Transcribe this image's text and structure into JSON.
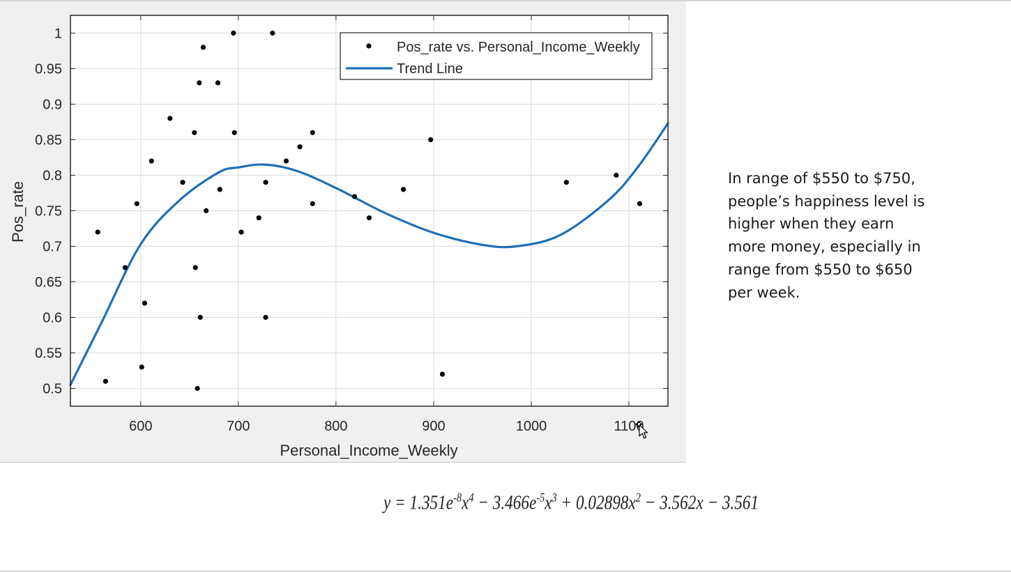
{
  "chart_data": {
    "type": "scatter",
    "xlabel": "Personal_Income_Weekly",
    "ylabel": "Pos_rate",
    "xlim": [
      528,
      1140
    ],
    "ylim": [
      0.475,
      1.025
    ],
    "x_ticks": [
      600,
      700,
      800,
      900,
      1000,
      1100
    ],
    "y_ticks": [
      0.5,
      0.55,
      0.6,
      0.65,
      0.7,
      0.75,
      0.8,
      0.85,
      0.9,
      0.95,
      1
    ],
    "grid": true,
    "legend_position": "top-right",
    "legend": [
      "Pos_rate vs. Personal_Income_Weekly",
      "Trend Line"
    ],
    "series": [
      {
        "name": "Pos_rate vs. Personal_Income_Weekly",
        "style": "markers",
        "color": "#000000",
        "points": [
          [
            556,
            0.72
          ],
          [
            564,
            0.51
          ],
          [
            584,
            0.67
          ],
          [
            596,
            0.76
          ],
          [
            601,
            0.53
          ],
          [
            604,
            0.62
          ],
          [
            611,
            0.82
          ],
          [
            630,
            0.88
          ],
          [
            643,
            0.79
          ],
          [
            655,
            0.86
          ],
          [
            656,
            0.67
          ],
          [
            658,
            0.5
          ],
          [
            660,
            0.93
          ],
          [
            661,
            0.6
          ],
          [
            664,
            0.98
          ],
          [
            667,
            0.75
          ],
          [
            679,
            0.93
          ],
          [
            681,
            0.78
          ],
          [
            695,
            1.0
          ],
          [
            696,
            0.86
          ],
          [
            703,
            0.72
          ],
          [
            721,
            0.74
          ],
          [
            728,
            0.79
          ],
          [
            728,
            0.6
          ],
          [
            735,
            1.0
          ],
          [
            749,
            0.82
          ],
          [
            763,
            0.84
          ],
          [
            776,
            0.86
          ],
          [
            776,
            0.76
          ],
          [
            819,
            0.77
          ],
          [
            834,
            0.74
          ],
          [
            869,
            0.78
          ],
          [
            897,
            0.85
          ],
          [
            909,
            0.52
          ],
          [
            1036,
            0.79
          ],
          [
            1087,
            0.8
          ],
          [
            1111,
            0.76
          ]
        ]
      },
      {
        "name": "Trend Line",
        "style": "line",
        "color": "#1f6fb5",
        "points": [
          [
            528,
            0.505
          ],
          [
            560,
            0.593
          ],
          [
            600,
            0.703
          ],
          [
            640,
            0.765
          ],
          [
            680,
            0.804
          ],
          [
            700,
            0.811
          ],
          [
            727,
            0.815
          ],
          [
            760,
            0.806
          ],
          [
            800,
            0.782
          ],
          [
            850,
            0.747
          ],
          [
            900,
            0.719
          ],
          [
            950,
            0.702
          ],
          [
            985,
            0.7
          ],
          [
            1030,
            0.716
          ],
          [
            1080,
            0.766
          ],
          [
            1110,
            0.813
          ],
          [
            1140,
            0.873
          ]
        ]
      }
    ]
  },
  "note": {
    "text": "In range of $550 to $750,\npeople’s happiness level is\nhigher when they earn\nmore money, especially in\nrange from $550 to $650\nper week."
  },
  "equation": {
    "text": "y = 1.351e^{-8}x^{4} − 3.466e^{-5}x^{3} + 0.02898x^{2} − 3.562x − 3.561"
  },
  "colors": {
    "figure_background": "#f0f0f0",
    "axes_background": "#ffffff",
    "grid": "#dcdcdc",
    "marker": "#000000",
    "trend_line": "#1f6fb5"
  },
  "cursor": {
    "icon": "arrow-move-cursor-icon"
  }
}
